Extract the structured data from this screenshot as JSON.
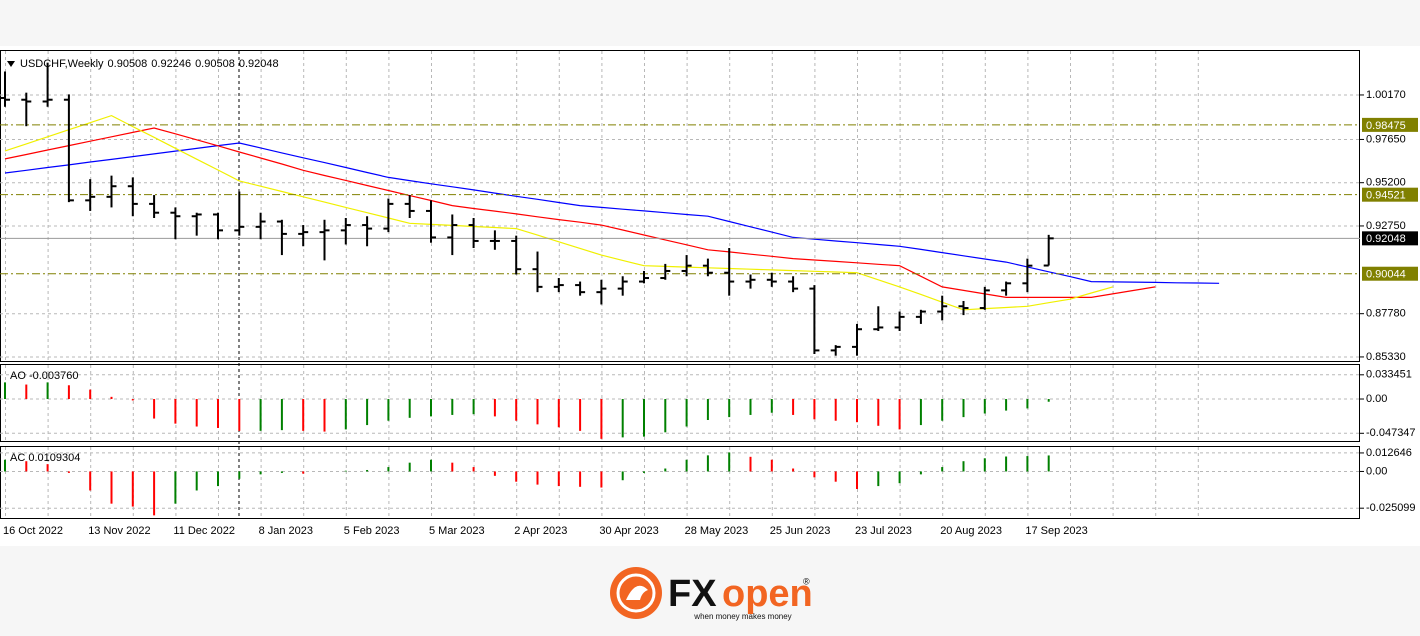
{
  "chart_data": [
    {
      "type": "ohlc",
      "title": "USDCHF,Weekly",
      "categories": [
        "16 Oct 2022",
        null,
        null,
        null,
        "13 Nov 2022",
        null,
        null,
        null,
        "11 Dec 2022",
        null,
        null,
        null,
        "8 Jan 2023",
        null,
        null,
        null,
        "5 Feb 2023",
        null,
        null,
        null,
        "5 Mar 2023",
        null,
        null,
        null,
        "2 Apr 2023",
        null,
        null,
        null,
        "30 Apr 2023",
        null,
        null,
        null,
        "28 May 2023",
        null,
        null,
        null,
        "25 Jun 2023",
        null,
        null,
        null,
        "23 Jul 2023",
        null,
        null,
        null,
        "20 Aug 2023",
        null,
        null,
        null,
        "17 Sep 2023",
        null,
        null,
        null,
        null,
        null,
        null,
        null,
        null,
        null
      ],
      "open": [
        1.0,
        0.999,
        0.998,
        0.999,
        0.942,
        0.944,
        0.95,
        0.94,
        0.935,
        0.933,
        0.934,
        0.925,
        0.927,
        0.93,
        0.923,
        0.924,
        0.925,
        0.928,
        0.926,
        0.94,
        0.936,
        0.921,
        0.928,
        0.919,
        0.919,
        0.903,
        0.893,
        0.894,
        0.89,
        0.892,
        0.896,
        0.898,
        0.902,
        0.905,
        0.901,
        0.896,
        0.897,
        0.896,
        0.892,
        0.857,
        0.859,
        0.869,
        0.87,
        0.876,
        0.879,
        0.882,
        0.881,
        0.891,
        0.895,
        0.90508,
        null,
        null,
        null,
        null,
        null,
        null,
        null,
        null
      ],
      "high": [
        1.015,
        1.003,
        1.02,
        1.002,
        0.954,
        0.956,
        0.955,
        0.945,
        0.938,
        0.935,
        0.935,
        0.947,
        0.935,
        0.931,
        0.928,
        0.931,
        0.932,
        0.933,
        0.943,
        0.945,
        0.942,
        0.934,
        0.932,
        0.925,
        0.922,
        0.913,
        0.898,
        0.896,
        0.897,
        0.899,
        0.902,
        0.906,
        0.911,
        0.909,
        0.915,
        0.9,
        0.901,
        0.899,
        0.894,
        0.86,
        0.872,
        0.882,
        0.879,
        0.88,
        0.888,
        0.885,
        0.893,
        0.896,
        0.909,
        0.92246,
        null,
        null,
        null,
        null,
        null,
        null,
        null,
        null
      ],
      "low": [
        0.995,
        0.984,
        0.995,
        0.941,
        0.936,
        0.938,
        0.933,
        0.932,
        0.92,
        0.922,
        0.92,
        0.922,
        0.92,
        0.911,
        0.916,
        0.908,
        0.917,
        0.916,
        0.924,
        0.932,
        0.918,
        0.911,
        0.915,
        0.914,
        0.9,
        0.89,
        0.89,
        0.888,
        0.883,
        0.888,
        0.895,
        0.897,
        0.899,
        0.899,
        0.888,
        0.892,
        0.893,
        0.89,
        0.855,
        0.854,
        0.854,
        0.868,
        0.868,
        0.872,
        0.874,
        0.877,
        0.88,
        0.888,
        0.89,
        0.90508,
        null,
        null,
        null,
        null,
        null,
        null,
        null,
        null
      ],
      "close": [
        0.999,
        0.998,
        0.999,
        0.942,
        0.944,
        0.95,
        0.94,
        0.935,
        0.933,
        0.934,
        0.925,
        0.927,
        0.93,
        0.923,
        0.924,
        0.925,
        0.928,
        0.926,
        0.94,
        0.936,
        0.921,
        0.928,
        0.919,
        0.919,
        0.903,
        0.893,
        0.894,
        0.89,
        0.892,
        0.896,
        0.898,
        0.902,
        0.905,
        0.901,
        0.896,
        0.897,
        0.896,
        0.892,
        0.857,
        0.859,
        0.869,
        0.87,
        0.876,
        0.879,
        0.882,
        0.881,
        0.891,
        0.895,
        0.905,
        0.92048,
        null,
        null,
        null,
        null,
        null,
        null,
        null,
        null
      ],
      "color": "#000000",
      "series": [
        {
          "color": "#0000ff",
          "values": [
            0.9575,
            0.959,
            0.9606,
            0.9621,
            0.9637,
            0.9652,
            0.9668,
            0.9683,
            0.9699,
            0.9714,
            0.973,
            0.9745,
            0.9717,
            0.9689,
            0.9661,
            0.9634,
            0.9606,
            0.9578,
            0.955,
            0.9532,
            0.9514,
            0.9497,
            0.9479,
            0.9461,
            0.9443,
            0.9426,
            0.9408,
            0.939,
            0.938,
            0.937,
            0.936,
            0.935,
            0.934,
            0.933,
            0.93,
            0.927,
            0.924,
            0.921,
            0.92,
            0.919,
            0.918,
            0.917,
            0.916,
            0.9142,
            0.9124,
            0.9106,
            0.9088,
            0.907,
            0.9043,
            0.9015,
            0.8988,
            0.896,
            0.8958,
            0.8957,
            0.8955,
            0.8953,
            0.8952,
            0.895
          ]
        },
        {
          "color": "#ff0000",
          "values": [
            0.9655,
            0.968,
            0.9705,
            0.973,
            0.9755,
            0.978,
            0.9805,
            0.983,
            0.9797,
            0.9763,
            0.9729,
            0.9694,
            0.966,
            0.9626,
            0.959,
            0.9561,
            0.9533,
            0.9504,
            0.9476,
            0.9447,
            0.9419,
            0.939,
            0.9374,
            0.9359,
            0.9343,
            0.9327,
            0.9311,
            0.9296,
            0.928,
            0.9252,
            0.9224,
            0.9196,
            0.9168,
            0.914,
            0.9128,
            0.9115,
            0.9103,
            0.909,
            0.9082,
            0.9074,
            0.9066,
            0.9058,
            0.905,
            0.899,
            0.893,
            0.891,
            0.889,
            0.887,
            0.887,
            0.887,
            0.887,
            0.887,
            0.889,
            0.891,
            0.893,
            null,
            null,
            null
          ]
        },
        {
          "color": "#f0f000",
          "values": [
            0.97,
            0.974,
            0.978,
            0.982,
            0.986,
            0.99,
            0.9838,
            0.9777,
            0.9715,
            0.9653,
            0.9592,
            0.953,
            0.95,
            0.947,
            0.944,
            0.941,
            0.938,
            0.935,
            0.932,
            0.929,
            0.9284,
            0.9278,
            0.9272,
            0.9266,
            0.926,
            0.9223,
            0.9185,
            0.9148,
            0.911,
            0.908,
            0.905,
            0.9046,
            0.9042,
            0.9038,
            0.9034,
            0.903,
            0.9026,
            0.9022,
            0.9018,
            0.9014,
            0.901,
            0.897,
            0.893,
            0.8887,
            0.8843,
            0.88,
            0.8807,
            0.8813,
            0.882,
            0.884,
            0.886,
            0.8895,
            0.893,
            null,
            null,
            null,
            null,
            null
          ]
        }
      ],
      "levels": [
        0.98475,
        0.94521,
        0.90044
      ],
      "level_color": "#808000",
      "ylim": [
        0.851,
        1.0266
      ],
      "yticks": [
        {
          "value": 1.0017,
          "label": "1.00170"
        },
        {
          "value": 0.9765,
          "label": "0.97650"
        },
        {
          "value": 0.952,
          "label": "0.95200"
        },
        {
          "value": 0.9275,
          "label": "0.92750"
        },
        {
          "value": 0.8778,
          "label": "0.87780"
        },
        {
          "value": 0.8533,
          "label": "0.85330"
        }
      ],
      "grid": true
    },
    {
      "type": "bar",
      "title": "AO -0.003760",
      "values": [
        0.023,
        0.02,
        0.023,
        0.019,
        0.013,
        0.003,
        -0.002,
        -0.027,
        -0.034,
        -0.038,
        -0.04,
        -0.044,
        -0.044,
        -0.043,
        -0.044,
        -0.045,
        -0.042,
        -0.036,
        -0.03,
        -0.026,
        -0.024,
        -0.022,
        -0.021,
        -0.024,
        -0.03,
        -0.035,
        -0.039,
        -0.044,
        -0.055,
        -0.053,
        -0.052,
        -0.046,
        -0.038,
        -0.029,
        -0.025,
        -0.022,
        -0.019,
        -0.022,
        -0.028,
        -0.03,
        -0.032,
        -0.037,
        -0.042,
        -0.036,
        -0.03,
        -0.025,
        -0.02,
        -0.016,
        -0.013,
        -0.00376,
        null,
        null,
        null,
        null,
        null,
        null,
        null,
        null
      ],
      "up_color": "#008000",
      "down_color": "#ff0000",
      "ylim": [
        -0.058,
        0.047
      ],
      "yticks": [
        0.033451,
        {
          "value": 0,
          "label": "0.00"
        },
        -0.047347
      ],
      "grid": true
    },
    {
      "type": "bar",
      "title": "AC 0.0109304",
      "values": [
        0.008,
        0.007,
        0.005,
        -0.001,
        -0.013,
        -0.022,
        -0.024,
        -0.03,
        -0.022,
        -0.013,
        -0.01,
        -0.005,
        -0.002,
        -0.001,
        -0.0015,
        0.0,
        0.0005,
        0.001,
        0.003,
        0.006,
        0.008,
        0.006,
        0.003,
        -0.003,
        -0.007,
        -0.009,
        -0.01,
        -0.0105,
        -0.011,
        -0.006,
        -0.001,
        0.002,
        0.008,
        0.011,
        0.013,
        0.01,
        0.008,
        0.002,
        -0.004,
        -0.007,
        -0.012,
        -0.01,
        -0.008,
        -0.002,
        0.003,
        0.007,
        0.009,
        0.0102,
        0.0105,
        0.0109304,
        null,
        null,
        null,
        null,
        null,
        null,
        null,
        null
      ],
      "up_color": "#008000",
      "down_color": "#ff0000",
      "ylim": [
        -0.0318,
        0.0167
      ],
      "yticks": [
        0.012646,
        {
          "value": 0,
          "label": "0.00"
        },
        -0.025099
      ],
      "grid": true
    }
  ],
  "logo": {
    "fx": "FX",
    "open": "open",
    "mark": "®",
    "tagline": "when money makes money"
  }
}
